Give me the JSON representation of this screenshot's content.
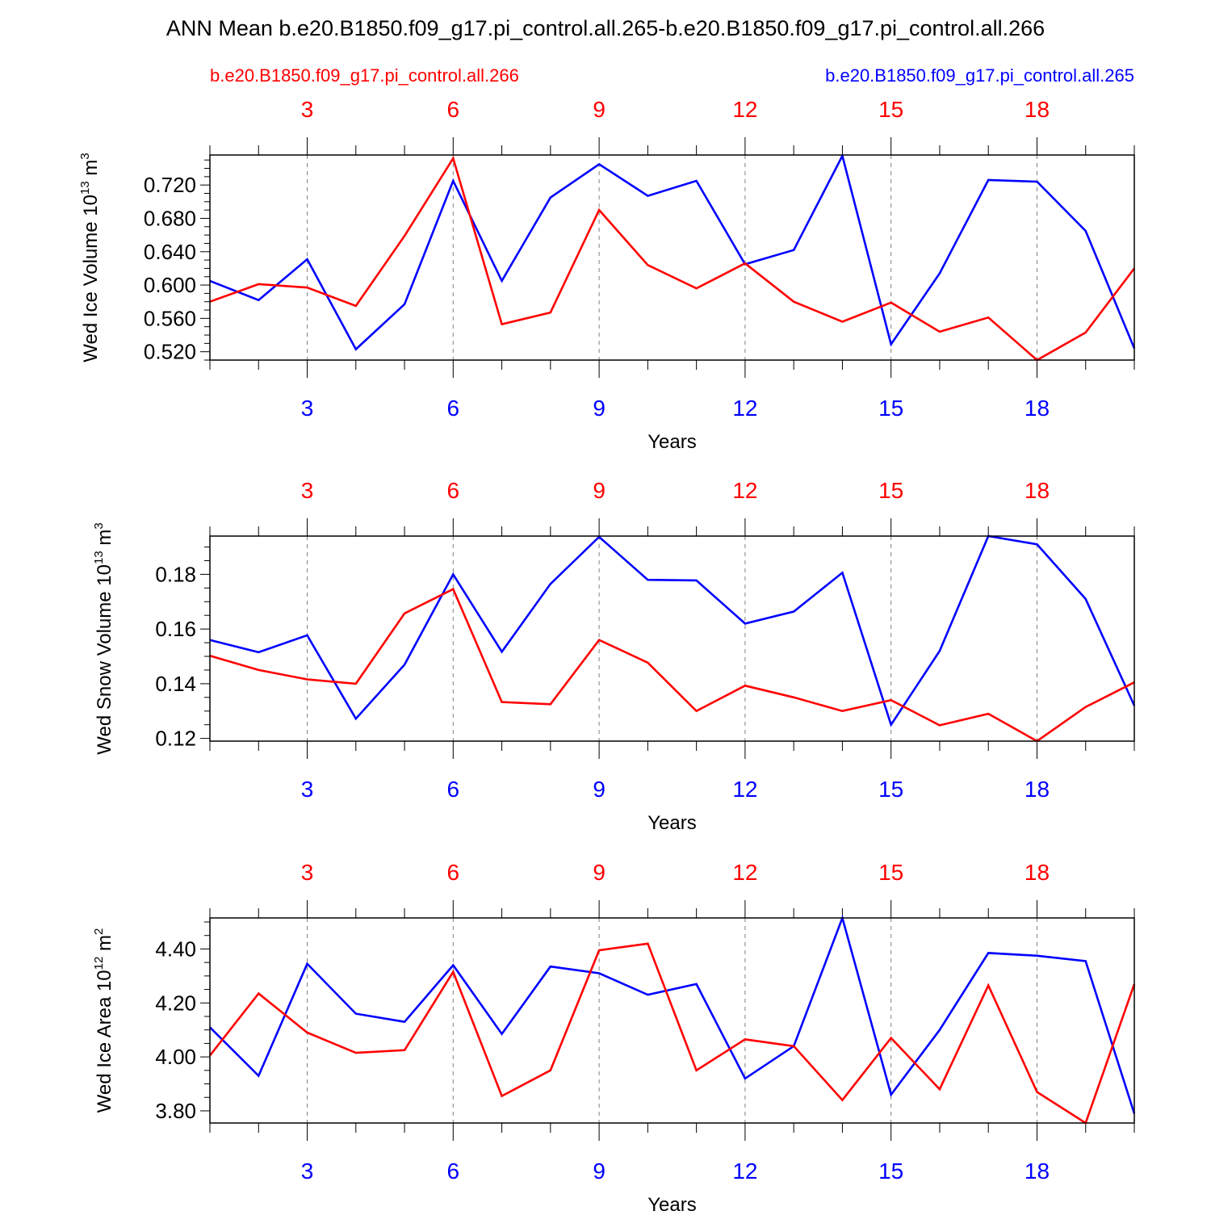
{
  "title": "ANN Mean b.e20.B1850.f09_g17.pi_control.all.265-b.e20.B1850.f09_g17.pi_control.all.266",
  "legend": {
    "left": "b.e20.B1850.f09_g17.pi_control.all.266",
    "right": "b.e20.B1850.f09_g17.pi_control.all.265"
  },
  "colors": {
    "red": "#ff0000",
    "blue": "#0000ff",
    "axis": "#000000",
    "grid": "#808080"
  },
  "chart_data": [
    {
      "type": "line",
      "ylabel": "Wed Ice Volume 10",
      "ylabel_exp": "13",
      "ylabel_unit": " m",
      "ylabel_unit_exp": "3",
      "xlabel": "Years",
      "xlim": [
        1,
        20
      ],
      "ylim": [
        0.51,
        0.756
      ],
      "yticks": [
        0.52,
        0.56,
        0.6,
        0.64,
        0.68,
        0.72
      ],
      "ytick_labels": [
        "0.520",
        "0.560",
        "0.600",
        "0.640",
        "0.680",
        "0.720"
      ],
      "yminor_step": 0.01,
      "xticks": [
        3,
        6,
        9,
        12,
        15,
        18
      ],
      "xtick_labels": [
        "3",
        "6",
        "9",
        "12",
        "15",
        "18"
      ],
      "x": [
        1,
        2,
        3,
        4,
        5,
        6,
        7,
        8,
        9,
        10,
        11,
        12,
        13,
        14,
        15,
        16,
        17,
        18,
        19,
        20
      ],
      "series": [
        {
          "color": "blue",
          "values": [
            0.605,
            0.582,
            0.631,
            0.523,
            0.577,
            0.725,
            0.605,
            0.705,
            0.745,
            0.707,
            0.725,
            0.625,
            0.642,
            0.755,
            0.529,
            0.614,
            0.726,
            0.724,
            0.665,
            0.524
          ]
        },
        {
          "color": "red",
          "values": [
            0.58,
            0.601,
            0.597,
            0.575,
            0.659,
            0.752,
            0.553,
            0.567,
            0.69,
            0.624,
            0.596,
            0.626,
            0.58,
            0.556,
            0.579,
            0.544,
            0.561,
            0.51,
            0.543,
            0.62
          ]
        }
      ]
    },
    {
      "type": "line",
      "ylabel": "Wed Snow Volume 10",
      "ylabel_exp": "13",
      "ylabel_unit": " m",
      "ylabel_unit_exp": "3",
      "xlabel": "Years",
      "xlim": [
        1,
        20
      ],
      "ylim": [
        0.119,
        0.194
      ],
      "yticks": [
        0.12,
        0.14,
        0.16,
        0.18
      ],
      "ytick_labels": [
        "0.12",
        "0.14",
        "0.16",
        "0.18"
      ],
      "yminor_step": 0.005,
      "xticks": [
        3,
        6,
        9,
        12,
        15,
        18
      ],
      "xtick_labels": [
        "3",
        "6",
        "9",
        "12",
        "15",
        "18"
      ],
      "x": [
        1,
        2,
        3,
        4,
        5,
        6,
        7,
        8,
        9,
        10,
        11,
        12,
        13,
        14,
        15,
        16,
        17,
        18,
        19,
        20
      ],
      "series": [
        {
          "color": "blue",
          "values": [
            0.156,
            0.1515,
            0.1577,
            0.1272,
            0.147,
            0.18,
            0.1517,
            0.1765,
            0.1937,
            0.178,
            0.1778,
            0.162,
            0.1664,
            0.1806,
            0.125,
            0.152,
            0.194,
            0.191,
            0.171,
            0.132
          ]
        },
        {
          "color": "red",
          "values": [
            0.1502,
            0.145,
            0.1416,
            0.14,
            0.1657,
            0.1746,
            0.1333,
            0.1325,
            0.156,
            0.1477,
            0.13,
            0.1393,
            0.135,
            0.13,
            0.134,
            0.1248,
            0.129,
            0.119,
            0.1315,
            0.1405
          ]
        }
      ]
    },
    {
      "type": "line",
      "ylabel": "Wed Ice Area 10",
      "ylabel_exp": "12",
      "ylabel_unit": " m",
      "ylabel_unit_exp": "2",
      "xlabel": "Years",
      "xlim": [
        1,
        20
      ],
      "ylim": [
        3.755,
        4.515
      ],
      "yticks": [
        3.8,
        4.0,
        4.2,
        4.4
      ],
      "ytick_labels": [
        "3.80",
        "4.00",
        "4.20",
        "4.40"
      ],
      "yminor_step": 0.05,
      "xticks": [
        3,
        6,
        9,
        12,
        15,
        18
      ],
      "xtick_labels": [
        "3",
        "6",
        "9",
        "12",
        "15",
        "18"
      ],
      "x": [
        1,
        2,
        3,
        4,
        5,
        6,
        7,
        8,
        9,
        10,
        11,
        12,
        13,
        14,
        15,
        16,
        17,
        18,
        19,
        20
      ],
      "series": [
        {
          "color": "blue",
          "values": [
            4.11,
            3.93,
            4.345,
            4.16,
            4.13,
            4.34,
            4.085,
            4.335,
            4.31,
            4.23,
            4.27,
            3.92,
            4.04,
            4.515,
            3.86,
            4.1,
            4.385,
            4.375,
            4.355,
            3.79
          ]
        },
        {
          "color": "red",
          "values": [
            4.005,
            4.235,
            4.09,
            4.015,
            4.025,
            4.315,
            3.855,
            3.95,
            4.395,
            4.42,
            3.95,
            4.065,
            4.04,
            3.84,
            4.07,
            3.88,
            4.265,
            3.87,
            3.755,
            4.27
          ]
        }
      ]
    }
  ]
}
